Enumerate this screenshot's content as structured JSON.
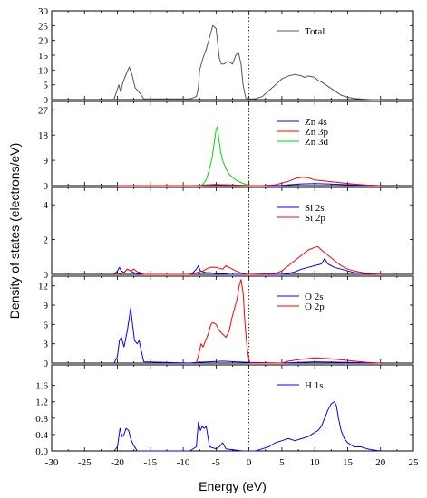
{
  "chart_data": {
    "type": "line",
    "xlabel": "Energy (eV)",
    "ylabel": "Density of states (electrons/eV)",
    "xlim": [
      -30,
      25
    ],
    "x_ticks": [
      "-30",
      "-25",
      "-20",
      "-15",
      "-10",
      "-5",
      "0",
      "5",
      "10",
      "15",
      "20",
      "25"
    ],
    "fermi_level": 0,
    "panels": [
      {
        "ylim": [
          0,
          30
        ],
        "y_ticks": [
          "0",
          "5",
          "10",
          "15",
          "20",
          "25",
          "30"
        ],
        "legend": "upper-right",
        "series": [
          {
            "name": "Total",
            "color": "#555555",
            "x": [
              -20.5,
              -19.8,
              -19.5,
              -19.2,
              -18.8,
              -18.2,
              -17.8,
              -17.3,
              -16.9,
              -16.5,
              -16.0,
              -9.0,
              -8.0,
              -7.7,
              -7.5,
              -7.0,
              -6.5,
              -6.0,
              -5.5,
              -5.0,
              -4.7,
              -4.5,
              -4.2,
              -3.8,
              -3.2,
              -2.5,
              -2.0,
              -1.6,
              -1.2,
              -0.9,
              -0.5,
              0.0,
              0.5,
              1.0,
              2.0,
              3.0,
              4.0,
              5.0,
              6.0,
              7.0,
              8.0,
              8.5,
              9.0,
              10.0,
              10.5,
              11.0,
              12.0,
              13.0,
              14.0,
              15.0,
              16.0,
              17.0,
              18.0,
              19.0,
              20.0
            ],
            "y": [
              0.2,
              5.0,
              2.5,
              5.5,
              8.0,
              11.0,
              8.5,
              4.0,
              3.0,
              2.0,
              0.2,
              0.2,
              1.0,
              4.0,
              10.0,
              14.0,
              17.0,
              21.0,
              25.0,
              24.0,
              18.0,
              14.0,
              12.0,
              12.0,
              13.0,
              12.0,
              15.0,
              16.0,
              12.0,
              5.0,
              0.6,
              0.2,
              0.2,
              0.3,
              1.0,
              3.0,
              5.0,
              7.0,
              8.0,
              8.5,
              8.0,
              7.5,
              8.0,
              7.5,
              6.5,
              6.0,
              4.5,
              3.0,
              1.5,
              0.8,
              0.4,
              0.2,
              0.1,
              0.0,
              0.0
            ]
          }
        ]
      },
      {
        "ylim": [
          0,
          30
        ],
        "y_ticks": [
          "0",
          "9",
          "18",
          "27"
        ],
        "legend": "upper-right",
        "series": [
          {
            "name": "Zn 4s",
            "color": "#0000ff",
            "x": [
              -20,
              -8,
              -7,
              -6,
              -5,
              -4,
              -3,
              -1,
              0,
              2,
              5,
              6,
              8,
              10,
              12,
              14,
              16,
              18,
              20
            ],
            "y": [
              0,
              0,
              0.2,
              0.3,
              0.4,
              0.3,
              0.2,
              0.1,
              0,
              0,
              0.1,
              0.3,
              0.6,
              0.7,
              0.6,
              0.4,
              0.2,
              0.1,
              0
            ]
          },
          {
            "name": "Zn 3p",
            "color": "#ff0000",
            "x": [
              -20,
              -8,
              -6,
              -5,
              -4,
              -2,
              0,
              2,
              4,
              6,
              7,
              8,
              9,
              10,
              12,
              14,
              16,
              18,
              20
            ],
            "y": [
              0,
              0,
              0.2,
              0.3,
              0.3,
              0.2,
              0,
              0,
              0.3,
              1.5,
              2.5,
              3.0,
              2.8,
              2.0,
              1.5,
              1.0,
              0.5,
              0.2,
              0
            ]
          },
          {
            "name": "Zn 3d",
            "color": "#00dd00",
            "x": [
              -7.5,
              -7.0,
              -6.5,
              -6.0,
              -5.6,
              -5.3,
              -5.0,
              -4.8,
              -4.6,
              -4.3,
              -4.0,
              -3.5,
              -3.0,
              -2.0,
              -1.0,
              0.0
            ],
            "y": [
              0.0,
              0.5,
              2.0,
              6.0,
              10.0,
              15.0,
              20.0,
              21.0,
              17.0,
              12.0,
              9.0,
              6.0,
              4.0,
              2.0,
              0.8,
              0.2
            ]
          }
        ]
      },
      {
        "ylim": [
          0,
          5
        ],
        "y_ticks": [
          "0",
          "2",
          "4"
        ],
        "legend": "upper-right",
        "series": [
          {
            "name": "Si 2s",
            "color": "#0000ff",
            "x": [
              -20.5,
              -20.0,
              -19.7,
              -19.4,
              -19.0,
              -18.5,
              -18.0,
              -17.5,
              -17.0,
              -16.0,
              -9.0,
              -8.5,
              -8.0,
              -7.7,
              -7.4,
              -7.0,
              -6.5,
              -6.0,
              -5.0,
              -4.0,
              -3.0,
              -2.0,
              -1.0,
              0.0,
              5.0,
              6.0,
              7.0,
              8.0,
              9.0,
              10.0,
              11.0,
              11.5,
              12.0,
              13.0,
              14.0,
              15.0,
              16.0,
              18.0,
              20.0
            ],
            "y": [
              0.0,
              0.2,
              0.4,
              0.2,
              0.1,
              0.3,
              0.2,
              0.1,
              0.05,
              0.0,
              0.0,
              0.1,
              0.3,
              0.5,
              0.2,
              0.15,
              0.1,
              0.1,
              0.05,
              0.05,
              0.0,
              0.0,
              0.0,
              0.0,
              0.0,
              0.05,
              0.15,
              0.3,
              0.4,
              0.5,
              0.6,
              0.9,
              0.6,
              0.4,
              0.3,
              0.2,
              0.1,
              0.05,
              0.0
            ]
          },
          {
            "name": "Si 2p",
            "color": "#ff0000",
            "x": [
              -20.0,
              -19.0,
              -18.5,
              -18.0,
              -17.5,
              -17.0,
              -16.5,
              -16.0,
              -9.0,
              -8.0,
              -7.0,
              -6.5,
              -6.0,
              -5.0,
              -4.0,
              -3.5,
              -3.0,
              -2.0,
              -1.0,
              0.0,
              4.0,
              5.0,
              6.0,
              7.0,
              8.0,
              9.0,
              10.0,
              10.5,
              11.0,
              12.0,
              13.0,
              14.0,
              15.0,
              16.0,
              18.0,
              20.0
            ],
            "y": [
              0.0,
              0.1,
              0.3,
              0.2,
              0.3,
              0.15,
              0.1,
              0.0,
              0.0,
              0.1,
              0.2,
              0.3,
              0.4,
              0.4,
              0.3,
              0.5,
              0.4,
              0.2,
              0.05,
              0.0,
              0.05,
              0.2,
              0.5,
              0.8,
              1.1,
              1.4,
              1.55,
              1.6,
              1.4,
              1.1,
              0.8,
              0.5,
              0.3,
              0.2,
              0.05,
              0.0
            ]
          }
        ]
      },
      {
        "ylim": [
          0,
          13.5
        ],
        "y_ticks": [
          "0",
          "3",
          "6",
          "9",
          "12"
        ],
        "legend": "upper-right",
        "series": [
          {
            "name": "O 2s",
            "color": "#0000ff",
            "x": [
              -20.5,
              -20.0,
              -19.7,
              -19.4,
              -19.0,
              -18.5,
              -18.0,
              -17.7,
              -17.4,
              -17.0,
              -16.7,
              -16.4,
              -16.0,
              -9.0,
              -8.0,
              -6.0,
              -4.0,
              -2.0,
              0.0,
              5.0,
              10.0,
              15.0,
              20.0
            ],
            "y": [
              0.0,
              1.0,
              3.5,
              4.0,
              2.5,
              5.0,
              8.5,
              6.0,
              3.5,
              3.0,
              3.5,
              2.0,
              0.2,
              0.0,
              0.1,
              0.2,
              0.3,
              0.2,
              0.1,
              0.0,
              0.2,
              0.1,
              0.0
            ]
          },
          {
            "name": "O 2p",
            "color": "#ff0000",
            "x": [
              -8.0,
              -7.6,
              -7.3,
              -7.0,
              -6.6,
              -6.2,
              -5.8,
              -5.5,
              -5.0,
              -4.5,
              -4.0,
              -3.5,
              -3.0,
              -2.6,
              -2.2,
              -1.8,
              -1.5,
              -1.2,
              -0.9,
              -0.6,
              -0.3,
              0.0,
              0.2,
              1.0,
              5.0,
              6.0,
              8.0,
              10.0,
              12.0,
              14.0,
              16.0,
              18.0,
              20.0
            ],
            "y": [
              0.0,
              1.5,
              3.0,
              2.5,
              3.5,
              4.5,
              6.0,
              6.3,
              6.0,
              5.0,
              4.5,
              4.0,
              5.0,
              7.0,
              8.5,
              10.0,
              12.0,
              13.0,
              11.0,
              6.0,
              2.5,
              0.5,
              0.0,
              0.0,
              0.0,
              0.3,
              0.6,
              0.8,
              0.7,
              0.5,
              0.3,
              0.1,
              0.0
            ]
          }
        ]
      },
      {
        "ylim": [
          0,
          2.1
        ],
        "y_ticks": [
          "0.0",
          "0.4",
          "0.8",
          "1.2",
          "1.6"
        ],
        "legend": "upper-right",
        "series": [
          {
            "name": "H 1s",
            "color": "#0000ff",
            "x": [
              -20.5,
              -20.0,
              -19.6,
              -19.3,
              -19.0,
              -18.7,
              -18.3,
              -18.0,
              -17.6,
              -17.2,
              -17.0,
              -9.0,
              -8.0,
              -7.7,
              -7.4,
              -7.1,
              -6.8,
              -6.5,
              -6.2,
              -6.0,
              -5.0,
              -4.5,
              -4.0,
              -3.5,
              -2.0,
              -1.0,
              0.0,
              1.0,
              2.0,
              3.0,
              4.0,
              5.0,
              6.0,
              7.0,
              8.0,
              9.0,
              10.0,
              10.5,
              11.0,
              11.5,
              12.0,
              12.5,
              13.0,
              13.3,
              13.6,
              14.0,
              14.5,
              15.0,
              16.0,
              17.0,
              18.0,
              19.0,
              20.0
            ],
            "y": [
              0.0,
              0.1,
              0.55,
              0.35,
              0.4,
              0.55,
              0.5,
              0.3,
              0.15,
              0.05,
              0.0,
              0.0,
              0.1,
              0.7,
              0.5,
              0.6,
              0.55,
              0.6,
              0.3,
              0.1,
              0.05,
              0.1,
              0.2,
              0.05,
              0.02,
              0.0,
              0.0,
              0.0,
              0.05,
              0.1,
              0.2,
              0.25,
              0.3,
              0.25,
              0.3,
              0.35,
              0.45,
              0.5,
              0.6,
              0.8,
              1.0,
              1.15,
              1.2,
              1.1,
              0.8,
              0.5,
              0.3,
              0.2,
              0.1,
              0.1,
              0.05,
              0.02,
              0.0
            ]
          }
        ]
      }
    ]
  }
}
